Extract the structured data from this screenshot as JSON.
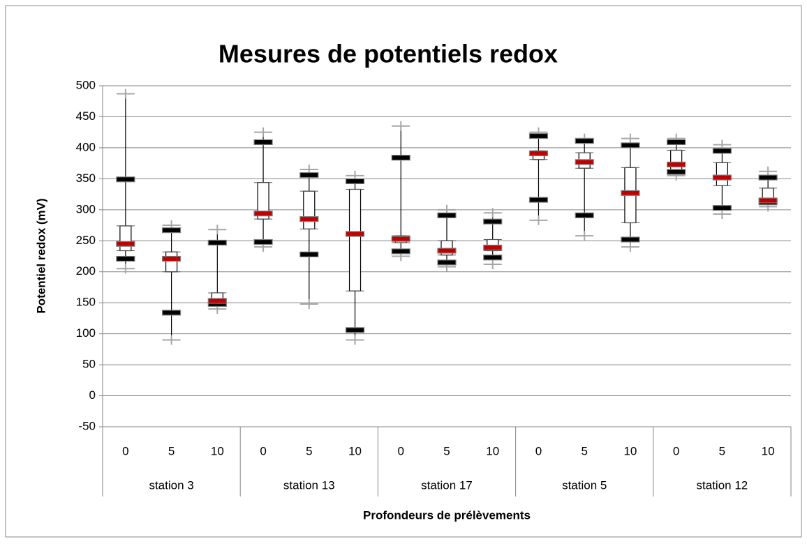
{
  "chart_data": {
    "type": "box",
    "title": "Mesures de potentiels redox",
    "y_label": "Potentiel redox (mV)",
    "x_label": "Profondeurs  de prélèvements",
    "groups": [
      "station 3",
      "station 13",
      "station 17",
      "station 5",
      "station 12"
    ],
    "categories": [
      "0",
      "5",
      "10",
      "0",
      "5",
      "10",
      "0",
      "5",
      "10",
      "0",
      "5",
      "10",
      "0",
      "5",
      "10"
    ],
    "max": [
      487,
      275,
      268,
      425,
      365,
      355,
      435,
      300,
      295,
      425,
      415,
      415,
      415,
      405,
      362
    ],
    "black_high": [
      349,
      267,
      247,
      409,
      356,
      346,
      384,
      291,
      281,
      419,
      411,
      404,
      409,
      395,
      352
    ],
    "q3": [
      274,
      232,
      166,
      344,
      330,
      333,
      258,
      250,
      252,
      395,
      392,
      368,
      396,
      376,
      335
    ],
    "median": [
      245,
      221,
      153,
      294,
      285,
      261,
      253,
      234,
      239,
      391,
      377,
      327,
      373,
      352,
      315
    ],
    "q1": [
      234,
      200,
      146,
      285,
      269,
      169,
      247,
      227,
      234,
      381,
      367,
      279,
      365,
      339,
      310
    ],
    "black_low": [
      221,
      134,
      148,
      248,
      228,
      106,
      233,
      215,
      223,
      316,
      291,
      252,
      361,
      303,
      312
    ],
    "min": [
      205,
      90,
      140,
      240,
      148,
      90,
      225,
      208,
      212,
      283,
      258,
      240,
      355,
      293,
      305
    ],
    "colors": {
      "extreme": "#a6a6a6",
      "dash": "#000000",
      "median": "#c00000",
      "box": "#000000"
    },
    "ylim": [
      -50,
      500
    ],
    "yticks": [
      -50,
      0,
      50,
      100,
      150,
      200,
      250,
      300,
      350,
      400,
      450,
      500
    ],
    "grid": true
  }
}
